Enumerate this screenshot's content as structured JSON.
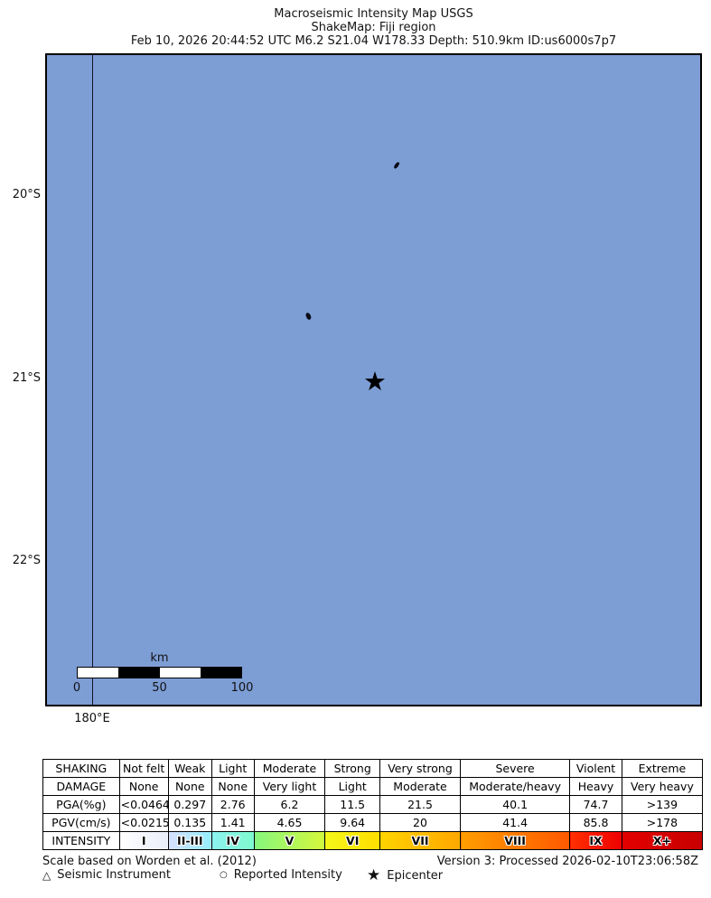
{
  "title": {
    "line1": "Macroseismic Intensity Map USGS",
    "line2": "ShakeMap: Fiji region",
    "line3": "Feb 10, 2026 20:44:52 UTC M6.2 S21.04 W178.33 Depth: 510.9km ID:us6000s7p7"
  },
  "map": {
    "ocean_color": "#7D9DD5",
    "latitude_labels": [
      "20°S",
      "21°S",
      "22°S"
    ],
    "longitude_label": "180°E",
    "epicenter_symbol": "★",
    "scale_bar": {
      "unit_label": "km",
      "tick_labels": [
        "0",
        "50",
        "100"
      ]
    }
  },
  "table": {
    "rows": [
      {
        "header": "SHAKING",
        "cells": [
          "Not felt",
          "Weak",
          "Light",
          "Moderate",
          "Strong",
          "Very strong",
          "Severe",
          "Violent",
          "Extreme"
        ]
      },
      {
        "header": "DAMAGE",
        "cells": [
          "None",
          "None",
          "None",
          "Very light",
          "Light",
          "Moderate",
          "Moderate/heavy",
          "Heavy",
          "Very heavy"
        ]
      },
      {
        "header": "PGA(%g)",
        "cells": [
          "<0.0464",
          "0.297",
          "2.76",
          "6.2",
          "11.5",
          "21.5",
          "40.1",
          "74.7",
          ">139"
        ]
      },
      {
        "header": "PGV(cm/s)",
        "cells": [
          "<0.0215",
          "0.135",
          "1.41",
          "4.65",
          "9.64",
          "20",
          "41.4",
          "85.8",
          ">178"
        ]
      },
      {
        "header": "INTENSITY",
        "cells": [
          "I",
          "II-III",
          "IV",
          "V",
          "VI",
          "VII",
          "VIII",
          "IX",
          "X+"
        ]
      }
    ],
    "intensity_colors": [
      [
        "#FFFFFF",
        "#EAEDFB"
      ],
      [
        "#D8DFFE",
        "#94EFFB"
      ],
      [
        "#8BF3F0",
        "#7FFACF"
      ],
      [
        "#86F77E",
        "#D4F73C"
      ],
      [
        "#F4F719",
        "#FFDE00"
      ],
      [
        "#FFD400",
        "#FFA800"
      ],
      [
        "#FF9E00",
        "#FF5800"
      ],
      [
        "#FF3000",
        "#EE0000"
      ],
      [
        "#E30000",
        "#C80000"
      ]
    ]
  },
  "footer": {
    "scale_note": "Scale based on Worden et al. (2012)",
    "version_note": "Version 3: Processed 2026-02-10T23:06:58Z",
    "legend": [
      {
        "symbol": "△",
        "label": "Seismic Instrument"
      },
      {
        "symbol": "○",
        "label": "Reported Intensity"
      },
      {
        "symbol": "★",
        "label": "Epicenter"
      }
    ]
  }
}
